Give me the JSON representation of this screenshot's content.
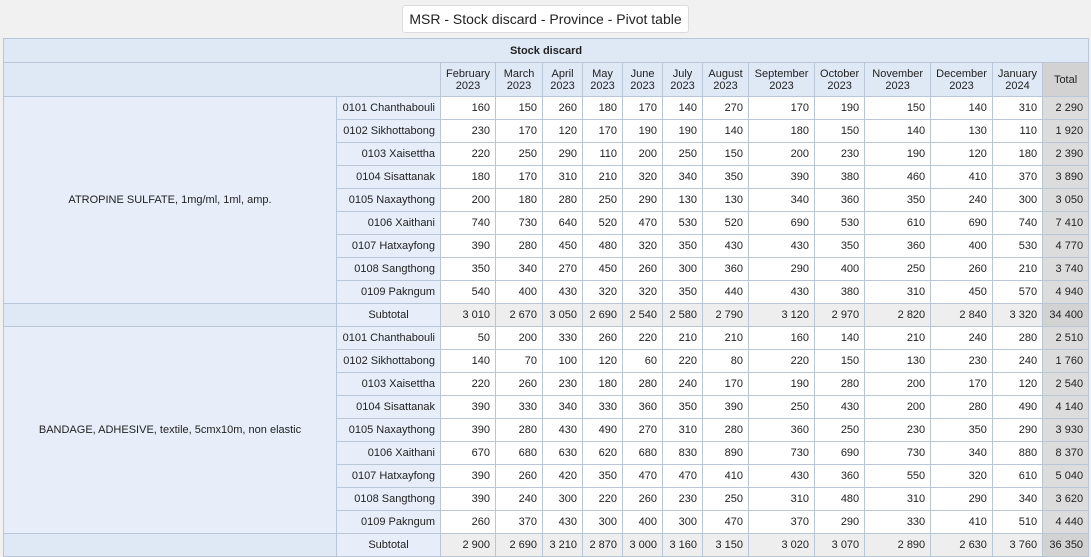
{
  "title": "MSR - Stock discard - Province - Pivot table",
  "measure": "Stock discard",
  "total_label": "Total",
  "subtotal_label": "Subtotal",
  "months": [
    [
      "February",
      "2023"
    ],
    [
      "March",
      "2023"
    ],
    [
      "April",
      "2023"
    ],
    [
      "May",
      "2023"
    ],
    [
      "June",
      "2023"
    ],
    [
      "July",
      "2023"
    ],
    [
      "August",
      "2023"
    ],
    [
      "September",
      "2023"
    ],
    [
      "October",
      "2023"
    ],
    [
      "November",
      "2023"
    ],
    [
      "December",
      "2023"
    ],
    [
      "January",
      "2024"
    ]
  ],
  "products": [
    {
      "name": "ATROPINE SULFATE, 1mg/ml, 1ml, amp.",
      "rows": [
        {
          "province": "0101 Chanthabouli",
          "values": [
            "160",
            "150",
            "260",
            "180",
            "170",
            "140",
            "270",
            "170",
            "190",
            "150",
            "140",
            "310"
          ],
          "total": "2 290"
        },
        {
          "province": "0102 Sikhottabong",
          "values": [
            "230",
            "170",
            "120",
            "170",
            "190",
            "190",
            "140",
            "180",
            "150",
            "140",
            "130",
            "110"
          ],
          "total": "1 920"
        },
        {
          "province": "0103 Xaisettha",
          "values": [
            "220",
            "250",
            "290",
            "110",
            "200",
            "250",
            "150",
            "200",
            "230",
            "190",
            "120",
            "180"
          ],
          "total": "2 390"
        },
        {
          "province": "0104 Sisattanak",
          "values": [
            "180",
            "170",
            "310",
            "210",
            "320",
            "340",
            "350",
            "390",
            "380",
            "460",
            "410",
            "370"
          ],
          "total": "3 890"
        },
        {
          "province": "0105 Naxaythong",
          "values": [
            "200",
            "180",
            "280",
            "250",
            "290",
            "130",
            "130",
            "340",
            "360",
            "350",
            "240",
            "300"
          ],
          "total": "3 050"
        },
        {
          "province": "0106 Xaithani",
          "values": [
            "740",
            "730",
            "640",
            "520",
            "470",
            "530",
            "520",
            "690",
            "530",
            "610",
            "690",
            "740"
          ],
          "total": "7 410"
        },
        {
          "province": "0107 Hatxayfong",
          "values": [
            "390",
            "280",
            "450",
            "480",
            "320",
            "350",
            "430",
            "430",
            "350",
            "360",
            "400",
            "530"
          ],
          "total": "4 770"
        },
        {
          "province": "0108 Sangthong",
          "values": [
            "350",
            "340",
            "270",
            "450",
            "260",
            "300",
            "360",
            "290",
            "400",
            "250",
            "260",
            "210"
          ],
          "total": "3 740"
        },
        {
          "province": "0109 Pakngum",
          "values": [
            "540",
            "400",
            "430",
            "320",
            "320",
            "350",
            "440",
            "430",
            "380",
            "310",
            "450",
            "570"
          ],
          "total": "4 940"
        }
      ],
      "subtotal": {
        "values": [
          "3 010",
          "2 670",
          "3 050",
          "2 690",
          "2 540",
          "2 580",
          "2 790",
          "3 120",
          "2 970",
          "2 820",
          "2 840",
          "3 320"
        ],
        "total": "34 400"
      }
    },
    {
      "name": "BANDAGE, ADHESIVE, textile, 5cmx10m, non elastic",
      "rows": [
        {
          "province": "0101 Chanthabouli",
          "values": [
            "50",
            "200",
            "330",
            "260",
            "220",
            "210",
            "210",
            "160",
            "140",
            "210",
            "240",
            "280"
          ],
          "total": "2 510"
        },
        {
          "province": "0102 Sikhottabong",
          "values": [
            "140",
            "70",
            "100",
            "120",
            "60",
            "220",
            "80",
            "220",
            "150",
            "130",
            "230",
            "240"
          ],
          "total": "1 760"
        },
        {
          "province": "0103 Xaisettha",
          "values": [
            "220",
            "260",
            "230",
            "180",
            "280",
            "240",
            "170",
            "190",
            "280",
            "200",
            "170",
            "120"
          ],
          "total": "2 540"
        },
        {
          "province": "0104 Sisattanak",
          "values": [
            "390",
            "330",
            "340",
            "330",
            "360",
            "350",
            "390",
            "250",
            "430",
            "200",
            "280",
            "490"
          ],
          "total": "4 140"
        },
        {
          "province": "0105 Naxaythong",
          "values": [
            "390",
            "280",
            "430",
            "490",
            "270",
            "310",
            "280",
            "360",
            "250",
            "230",
            "350",
            "290"
          ],
          "total": "3 930"
        },
        {
          "province": "0106 Xaithani",
          "values": [
            "670",
            "680",
            "630",
            "620",
            "680",
            "830",
            "890",
            "730",
            "690",
            "730",
            "340",
            "880"
          ],
          "total": "8 370"
        },
        {
          "province": "0107 Hatxayfong",
          "values": [
            "390",
            "260",
            "420",
            "350",
            "470",
            "470",
            "410",
            "430",
            "360",
            "550",
            "320",
            "610"
          ],
          "total": "5 040"
        },
        {
          "province": "0108 Sangthong",
          "values": [
            "390",
            "240",
            "300",
            "220",
            "260",
            "230",
            "250",
            "310",
            "480",
            "310",
            "290",
            "340"
          ],
          "total": "3 620"
        },
        {
          "province": "0109 Pakngum",
          "values": [
            "260",
            "370",
            "430",
            "300",
            "400",
            "300",
            "470",
            "370",
            "290",
            "330",
            "410",
            "510"
          ],
          "total": "4 440"
        }
      ],
      "subtotal": {
        "values": [
          "2 900",
          "2 690",
          "3 210",
          "2 870",
          "3 000",
          "3 160",
          "3 150",
          "3 020",
          "3 070",
          "2 890",
          "2 630",
          "3 760"
        ],
        "total": "36 350"
      }
    }
  ]
}
